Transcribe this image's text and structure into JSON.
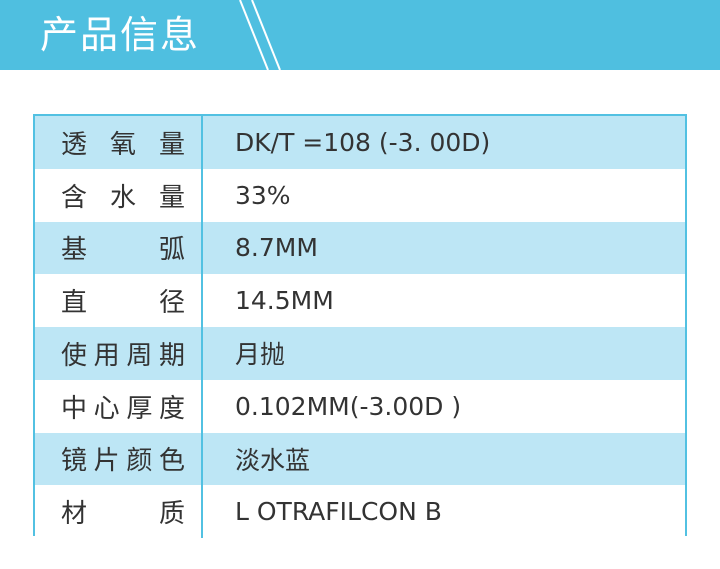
{
  "header": {
    "title": "产品信息",
    "color": "#4fbfe0"
  },
  "table": {
    "rows": [
      {
        "label": "透氧量",
        "value": "DK/T =108 (-3. 00D)"
      },
      {
        "label": "含水量",
        "value": "33%"
      },
      {
        "label": "基弧",
        "value": "8.7MM"
      },
      {
        "label": "直径",
        "value": "14.5MM"
      },
      {
        "label": "使用周期",
        "value": "月抛"
      },
      {
        "label": "中心厚度",
        "value": "0.102MM(-3.00D )"
      },
      {
        "label": "镜片颜色",
        "value": "淡水蓝"
      },
      {
        "label": "材质",
        "value": "L OTRAFILCON B"
      }
    ],
    "border_color": "#52c1e2",
    "stripe_color": "#bde6f5"
  }
}
